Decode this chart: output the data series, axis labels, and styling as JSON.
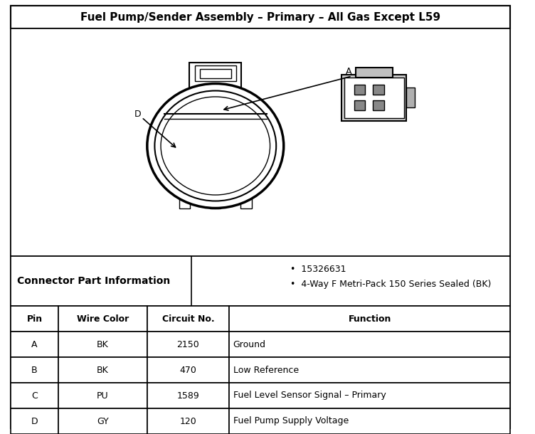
{
  "title": "Fuel Pump/Sender Assembly – Primary – All Gas Except L59",
  "connector_label": "Connector Part Information",
  "connector_info": [
    "15326631",
    "4-Way F Metri-Pack 150 Series Sealed (BK)"
  ],
  "table_headers": [
    "Pin",
    "Wire Color",
    "Circuit No.",
    "Function"
  ],
  "table_rows": [
    [
      "A",
      "BK",
      "2150",
      "Ground"
    ],
    [
      "B",
      "BK",
      "470",
      "Low Reference"
    ],
    [
      "C",
      "PU",
      "1589",
      "Fuel Level Sensor Signal – Primary"
    ],
    [
      "D",
      "GY",
      "120",
      "Fuel Pump Supply Voltage"
    ]
  ],
  "bg_color": "#ffffff",
  "border_color": "#000000",
  "header_bg": "#e8e8e8",
  "text_color": "#000000"
}
